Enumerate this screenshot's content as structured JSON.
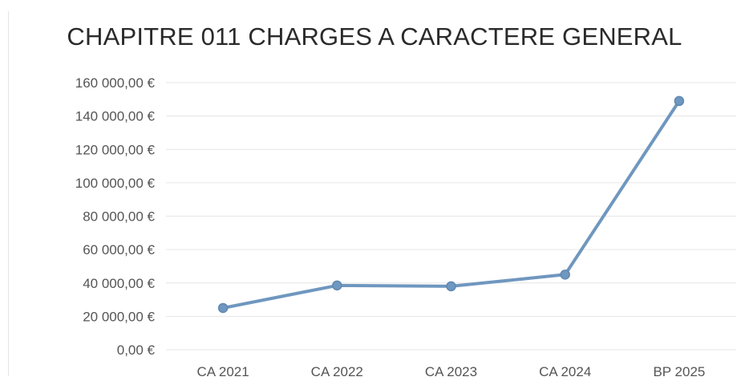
{
  "chart_data": {
    "type": "line",
    "title": "CHAPITRE 011 CHARGES A CARACTERE GENERAL",
    "categories": [
      "CA 2021",
      "CA 2022",
      "CA 2023",
      "CA 2024",
      "BP 2025"
    ],
    "series": [
      {
        "values": [
          25000,
          38500,
          38000,
          45000,
          149000
        ]
      }
    ],
    "ylim": [
      0,
      160000
    ],
    "yticks": [
      0,
      20000,
      40000,
      60000,
      80000,
      100000,
      120000,
      140000,
      160000
    ],
    "ytick_labels": [
      "0,00 €",
      "20 000,00 €",
      "40 000,00 €",
      "60 000,00 €",
      "80 000,00 €",
      "100 000,00 €",
      "120 000,00 €",
      "140 000,00 €",
      "160 000,00 €"
    ],
    "grid": true,
    "legend": "none",
    "colors": {
      "line": "#6f97bf",
      "grid": "#e6e6e6",
      "text": "#555555",
      "title": "#2a2a2a"
    }
  }
}
